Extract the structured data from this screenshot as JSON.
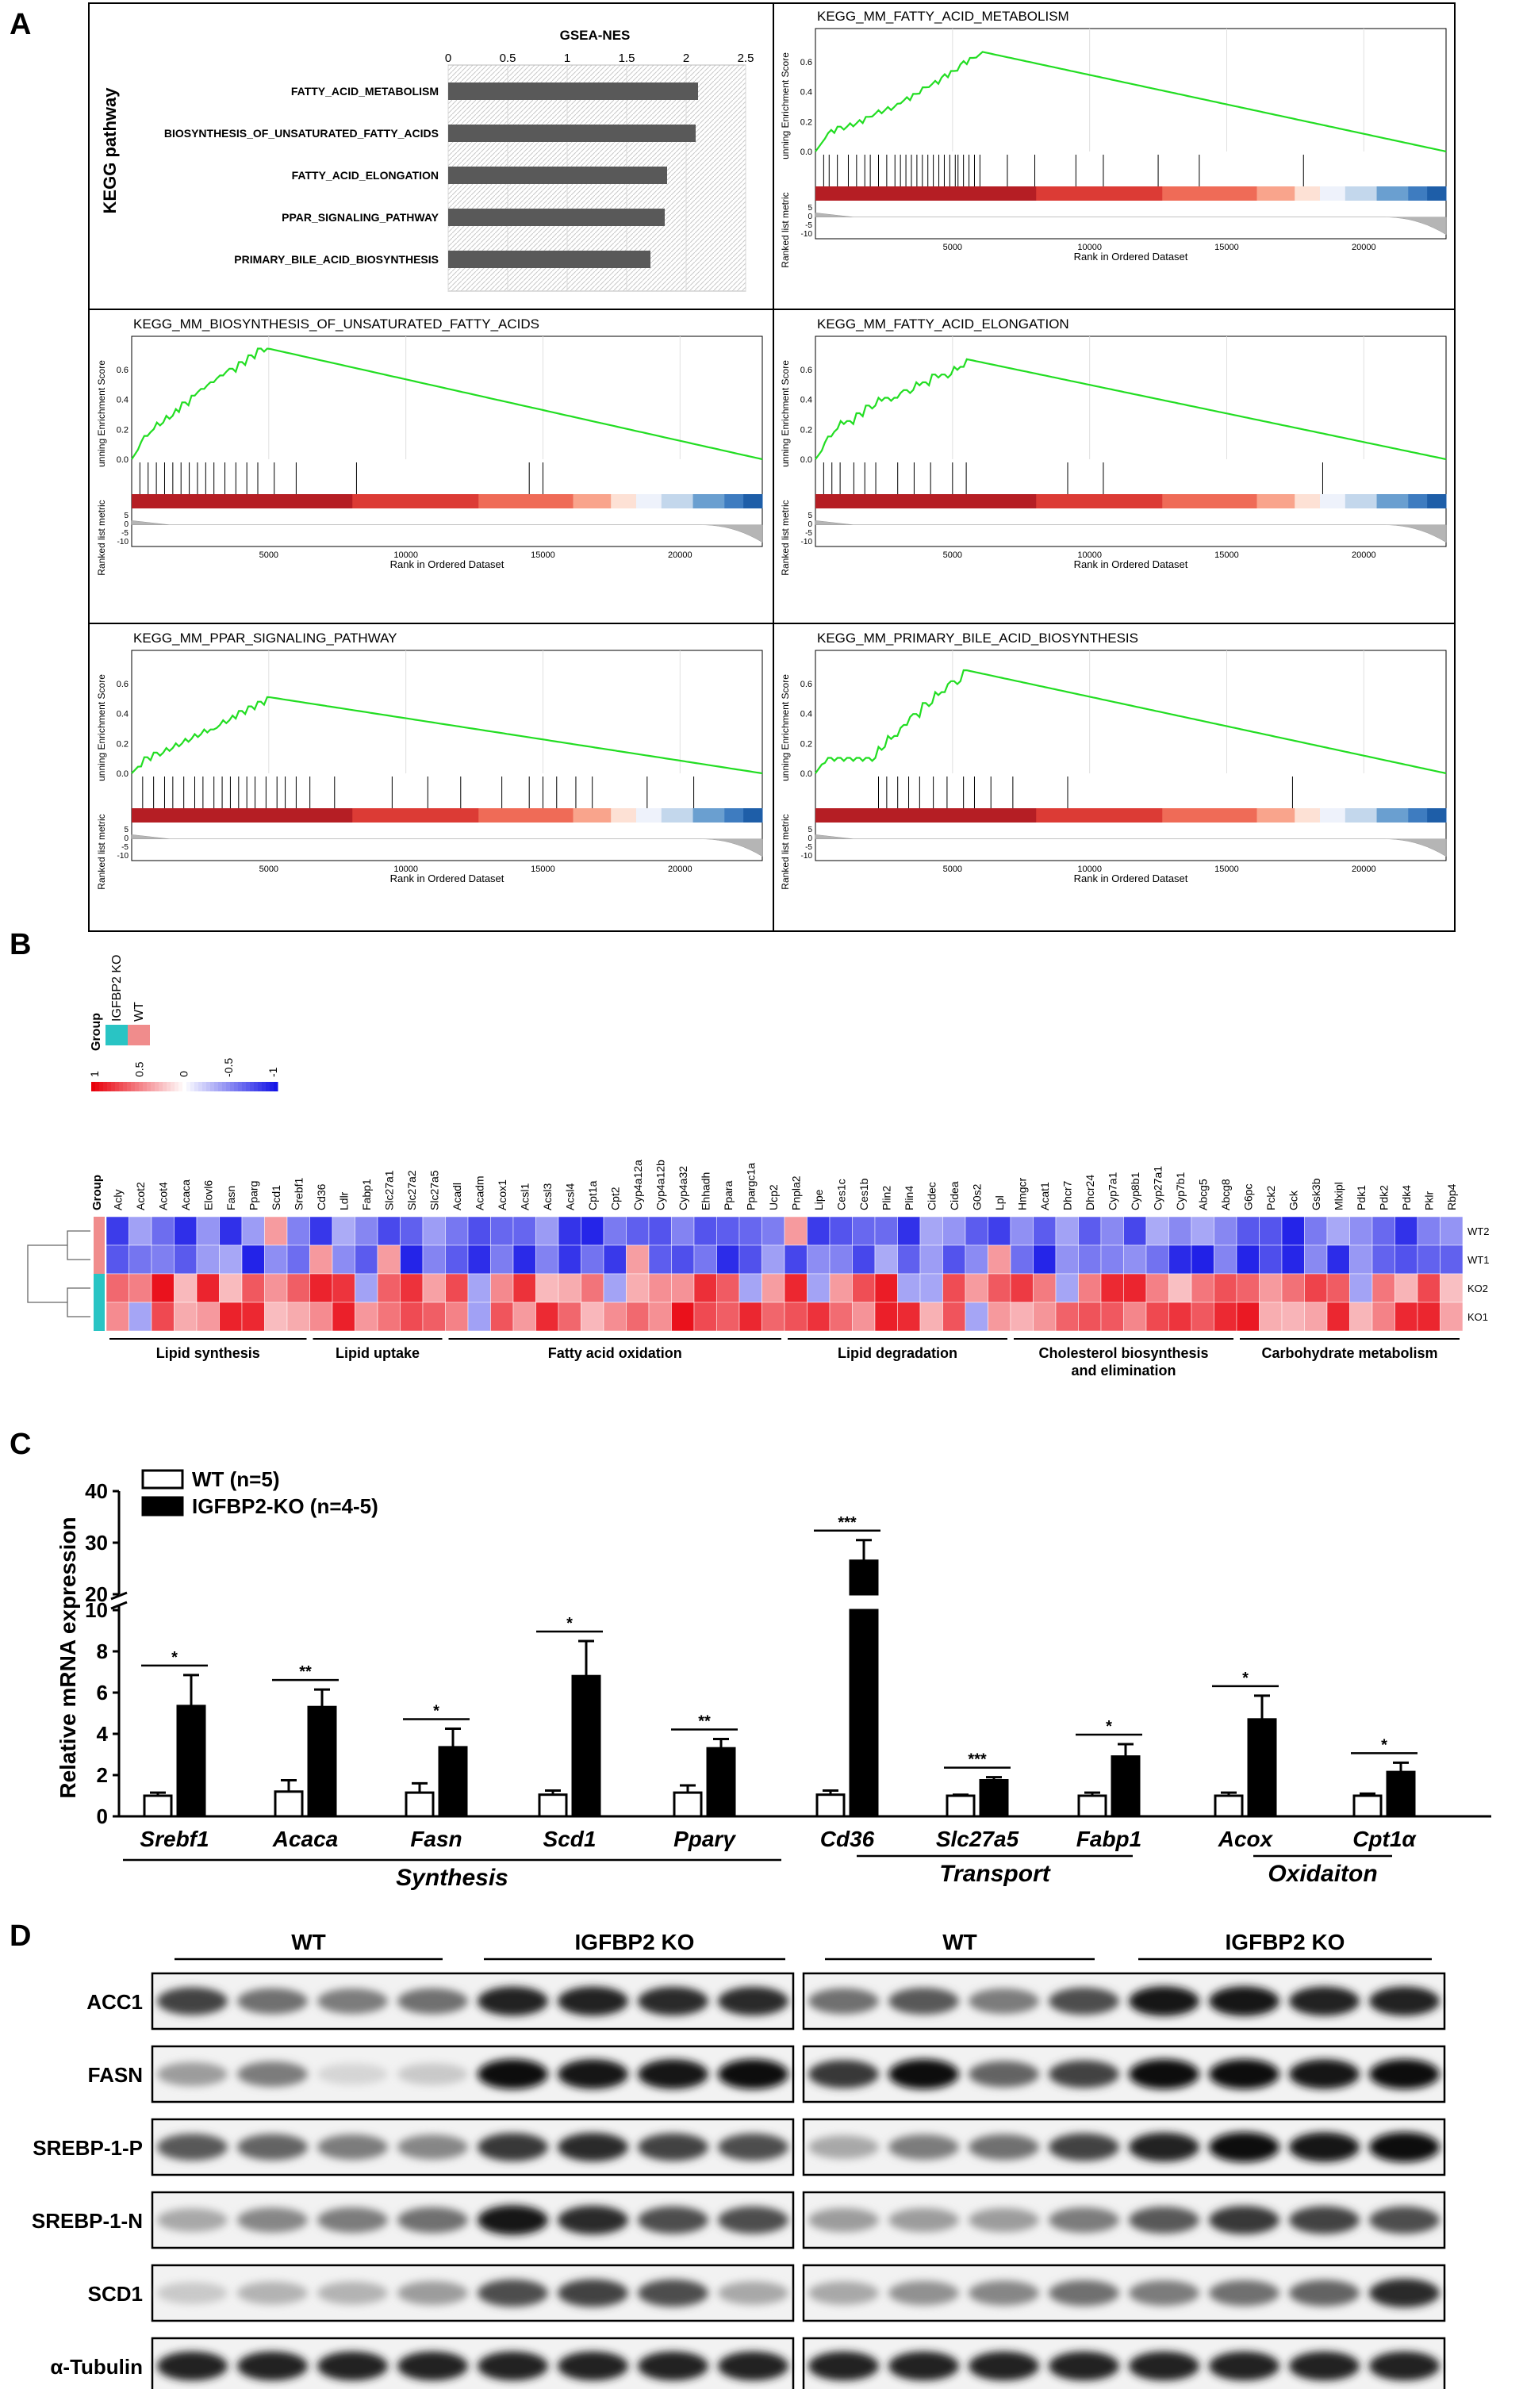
{
  "panels": {
    "A": "A",
    "B": "B",
    "C": "C",
    "D": "D"
  },
  "panelA": {
    "side_label": "KEGG pathway",
    "bar": {
      "title": "GSEA-NES",
      "ticks": [
        "0",
        "0.5",
        "1",
        "1.5",
        "2",
        "2.5"
      ],
      "xmax": 2.5,
      "categories": [
        "FATTY_ACID_METABOLISM",
        "BIOSYNTHESIS_OF_UNSATURATED_FATTY_ACIDS",
        "FATTY_ACID_ELONGATION",
        "PPAR_SIGNALING_PATHWAY",
        "PRIMARY_BILE_ACID_BIOSYNTHESIS"
      ],
      "values": [
        2.1,
        2.08,
        1.84,
        1.82,
        1.7
      ]
    },
    "gsea": {
      "ylabel": "unning Enrichment Score",
      "metric_label": "Ranked list metric",
      "xlabel": "Rank in Ordered Dataset",
      "xticks": [
        "5000",
        "10000",
        "15000",
        "20000"
      ],
      "es_ticks": [
        "0.6",
        "0.4",
        "0.2",
        "0.0"
      ],
      "metric_ticks": [
        "5",
        "0",
        "-5",
        "-10"
      ],
      "plots": [
        {
          "title": "KEGG_MM_FATTY_ACID_METABOLISM",
          "peak": 0.67,
          "peak_rank": 6000,
          "hits": [
            300,
            500,
            800,
            1200,
            1500,
            1800,
            2000,
            2300,
            2600,
            2900,
            3100,
            3300,
            3500,
            3700,
            3900,
            4100,
            4300,
            4500,
            4700,
            4900,
            5100,
            5200,
            5400,
            5600,
            5800,
            6000,
            7000,
            8000,
            9500,
            10500,
            12500,
            14000,
            17800
          ]
        },
        {
          "title": "KEGG_MM_BIOSYNTHESIS_OF_UNSATURATED_FATTY_ACIDS",
          "peak": 0.74,
          "peak_rank": 5000,
          "hits": [
            300,
            600,
            900,
            1200,
            1500,
            1800,
            2100,
            2400,
            2700,
            3000,
            3400,
            3800,
            4200,
            4600,
            5200,
            6000,
            8200,
            14500,
            15000
          ]
        },
        {
          "title": "KEGG_MM_FATTY_ACID_ELONGATION",
          "peak": 0.67,
          "peak_rank": 5500,
          "hits": [
            300,
            600,
            900,
            1400,
            1800,
            2200,
            3000,
            3600,
            4200,
            5000,
            5500,
            9200,
            10500,
            18500
          ]
        },
        {
          "title": "KEGG_MM_PPAR_SIGNALING_PATHWAY",
          "peak": 0.51,
          "peak_rank": 5000,
          "hits": [
            400,
            800,
            1200,
            1500,
            1900,
            2300,
            2600,
            3000,
            3300,
            3600,
            3900,
            4200,
            4500,
            4900,
            5300,
            5600,
            6000,
            6500,
            7400,
            9500,
            10800,
            12000,
            13500,
            14500,
            15000,
            15500,
            16200,
            16800,
            18800,
            20500
          ]
        },
        {
          "title": "KEGG_MM_PRIMARY_BILE_ACID_BIOSYNTHESIS",
          "peak": 0.69,
          "peak_rank": 5500,
          "hits": [
            2300,
            2600,
            3000,
            3400,
            3800,
            4300,
            4800,
            5400,
            5800,
            6400,
            7200,
            9200,
            17400
          ]
        }
      ]
    }
  },
  "panelB": {
    "legend": {
      "group_label": "Group",
      "group_items": [
        "IGFBP2 KO",
        "WT"
      ],
      "scale": [
        "1",
        "0.5",
        "0",
        "-0.5",
        "-1"
      ]
    },
    "group_col_label": "Group",
    "genes": [
      "Acly",
      "Acot2",
      "Acot4",
      "Acaca",
      "Elovl6",
      "Fasn",
      "Pparg",
      "Scd1",
      "Srebf1",
      "Cd36",
      "Ldlr",
      "Fabp1",
      "Slc27a1",
      "Slc27a2",
      "Slc27a5",
      "Acadl",
      "Acadm",
      "Acox1",
      "Acsl1",
      "Acsl3",
      "Acsl4",
      "Cpt1a",
      "Cpt2",
      "Cyp4a12a",
      "Cyp4a12b",
      "Cyp4a32",
      "Ehhadh",
      "Ppara",
      "Ppargc1a",
      "Ucp2",
      "Pnpla2",
      "Lipe",
      "Ces1c",
      "Ces1b",
      "Plin2",
      "Plin4",
      "Cidec",
      "Cidea",
      "G0s2",
      "Lpl",
      "Hmgcr",
      "Acat1",
      "Dhcr7",
      "Dhcr24",
      "Cyp7a1",
      "Cyp8b1",
      "Cyp27a1",
      "Cyp7b1",
      "Abcg5",
      "Abcg8",
      "G6pc",
      "Pck2",
      "Gck",
      "Gsk3b",
      "Mlxipl",
      "Pdk1",
      "Pdk2",
      "Pdk4",
      "Pklr",
      "Rbp4"
    ],
    "rows": [
      "WT2",
      "WT1",
      "KO2",
      "KO1"
    ],
    "categories": [
      {
        "name": "Lipid synthesis"
      },
      {
        "name": "Lipid uptake"
      },
      {
        "name": "Fatty acid oxidation"
      },
      {
        "name": "Lipid degradation"
      },
      {
        "name": "Cholesterol biosynthesis and elimination"
      },
      {
        "name": "Carbohydrate metabolism"
      }
    ]
  },
  "panelC": {
    "legend": [
      "WT (n=5)",
      "IGFBP2-KO (n=4-5)"
    ],
    "ylabel": "Relative mRNA expression",
    "yticks_lower": [
      "0",
      "2",
      "4",
      "6",
      "8",
      "10"
    ],
    "yticks_upper": [
      "20",
      "30",
      "40"
    ],
    "chart_data": {
      "type": "bar",
      "categories": [
        "Srebf1",
        "Acaca",
        "Fasn",
        "Scd1",
        "Pparγ",
        "Cd36",
        "Slc27a5",
        "Fabp1",
        "Acox",
        "Cpt1α"
      ],
      "series": [
        {
          "name": "WT (n=5)",
          "values": [
            1.0,
            1.2,
            1.15,
            1.05,
            1.15,
            1.05,
            1.0,
            1.0,
            1.0,
            1.0
          ],
          "errors": [
            0.15,
            0.55,
            0.45,
            0.2,
            0.35,
            0.2,
            0.05,
            0.15,
            0.15,
            0.1
          ]
        },
        {
          "name": "IGFBP2-KO (n=4-5)",
          "values": [
            5.35,
            5.3,
            3.35,
            6.8,
            3.3,
            26.5,
            1.75,
            2.9,
            4.7,
            2.15
          ],
          "errors": [
            1.5,
            0.85,
            0.9,
            1.7,
            0.45,
            4.0,
            0.15,
            0.6,
            1.15,
            0.45
          ]
        }
      ],
      "significance": [
        "*",
        "**",
        "*",
        "*",
        "**",
        "***",
        "***",
        "*",
        "*",
        "*"
      ],
      "ylim": [
        0,
        40
      ],
      "axis_break": [
        10,
        20
      ],
      "groups": [
        "Synthesis",
        "Transport",
        "Oxidaiton"
      ]
    }
  },
  "panelD": {
    "group_labels": [
      "WT",
      "IGFBP2 KO",
      "WT",
      "IGFBP2 KO"
    ],
    "proteins": [
      "ACC1",
      "FASN",
      "SREBP-1-P",
      "SREBP-1-N",
      "SCD1",
      "α-Tubulin"
    ],
    "intensity": [
      [
        0.75,
        0.55,
        0.5,
        0.55,
        0.9,
        0.9,
        0.85,
        0.85,
        0.55,
        0.65,
        0.5,
        0.7,
        0.95,
        0.95,
        0.9,
        0.9
      ],
      [
        0.35,
        0.5,
        0.1,
        0.15,
        1.0,
        0.95,
        0.95,
        1.0,
        0.8,
        1.0,
        0.6,
        0.75,
        1.0,
        1.0,
        0.95,
        1.0
      ],
      [
        0.65,
        0.6,
        0.5,
        0.45,
        0.8,
        0.85,
        0.75,
        0.7,
        0.3,
        0.5,
        0.55,
        0.75,
        0.9,
        1.0,
        0.95,
        1.0
      ],
      [
        0.3,
        0.45,
        0.5,
        0.55,
        0.95,
        0.85,
        0.7,
        0.7,
        0.35,
        0.35,
        0.35,
        0.5,
        0.65,
        0.8,
        0.75,
        0.7
      ],
      [
        0.15,
        0.25,
        0.25,
        0.35,
        0.7,
        0.75,
        0.7,
        0.3,
        0.3,
        0.4,
        0.45,
        0.55,
        0.5,
        0.55,
        0.6,
        0.85
      ],
      [
        0.9,
        0.9,
        0.9,
        0.9,
        0.9,
        0.9,
        0.9,
        0.9,
        0.9,
        0.9,
        0.9,
        0.9,
        0.9,
        0.9,
        0.9,
        0.9
      ]
    ]
  }
}
